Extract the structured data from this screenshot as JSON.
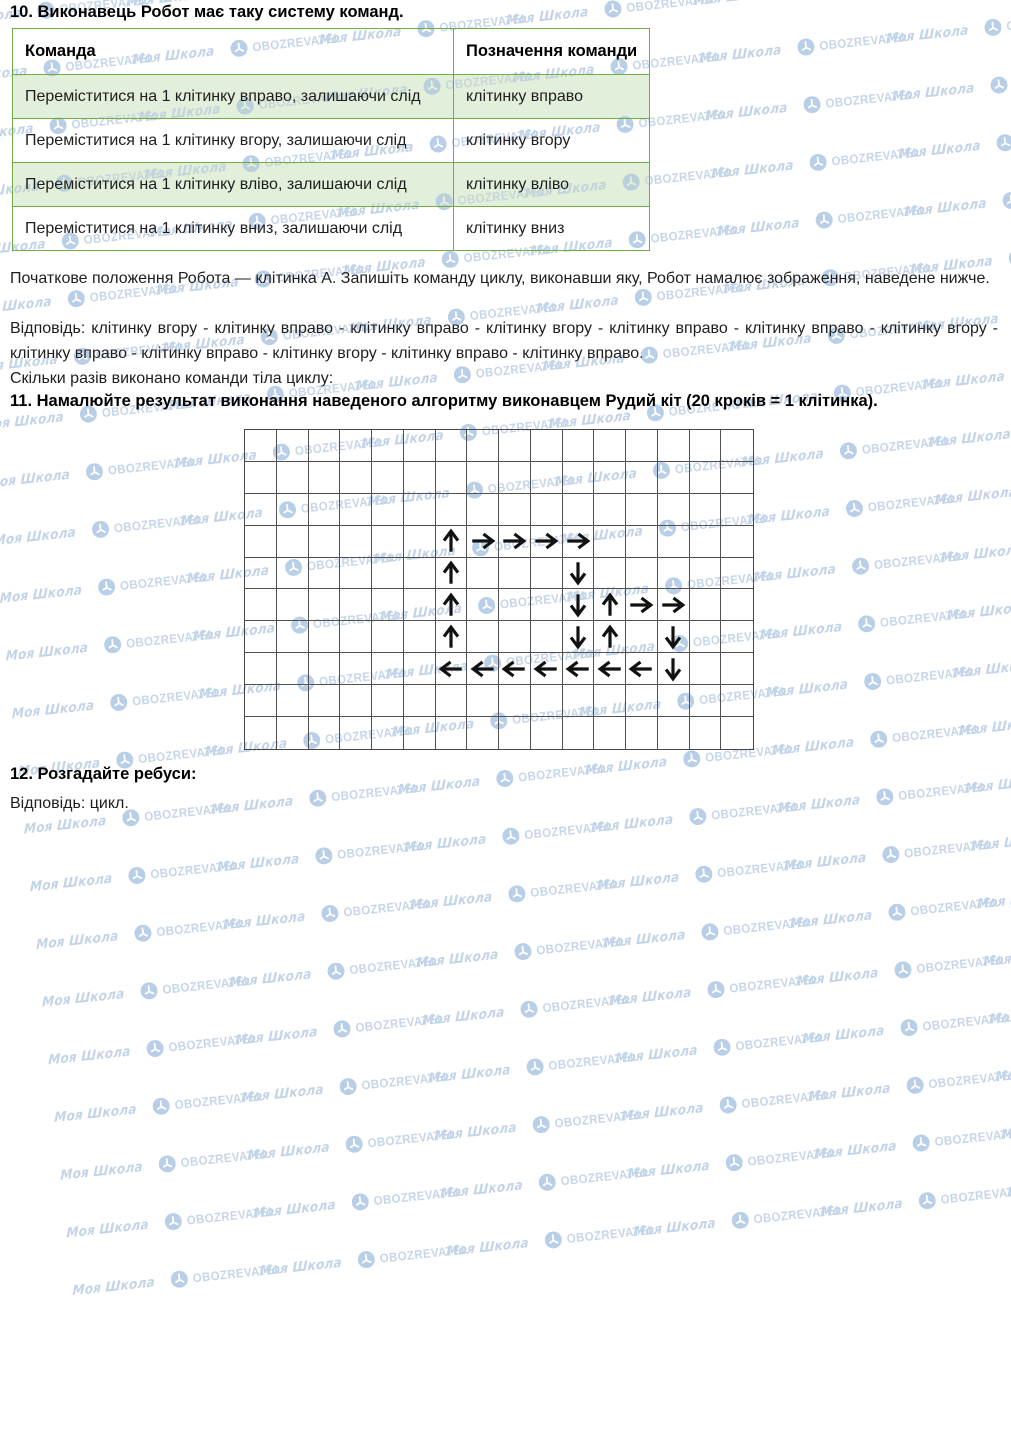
{
  "watermark": {
    "script_text": "Моя Школа",
    "caps_text": "OBOZREVATEL",
    "color": "#c3d4e8",
    "icon": "obozrevatel-clock-icon"
  },
  "colors": {
    "table_border": "#70ad47",
    "table_row_shaded": "#e2efda",
    "grid_line": "#525252",
    "arrow": "#111111"
  },
  "s10": {
    "heading": "10. Виконавець Робот має таку систему команд.",
    "table": {
      "headers": [
        "Команда",
        "Позначення команди"
      ],
      "rows": [
        {
          "command": "Переміститися на 1 клітинку вправо, залишаючи слід",
          "notation": "клітинку вправо",
          "shaded": true
        },
        {
          "command": "Переміститися на 1 клітинку вгору, залишаючи слід",
          "notation": "клітинку вгору",
          "shaded": false
        },
        {
          "command": "Переміститися на 1 клітинку вліво, залишаючи слід",
          "notation": "клітинку вліво",
          "shaded": true
        },
        {
          "command": "Переміститися на 1 клітинку вниз, залишаючи слід",
          "notation": "клітинку вниз",
          "shaded": false
        }
      ]
    },
    "paragraph": "Початкове положення Робота — клітинка А. Запишіть команду циклу, виконавши яку, Робот намалює зображення, наведене нижче.",
    "answer": "Відповідь: клітинку вгору - клітинку вправо - клітинку вправо - клітинку вгору - клітинку вправо - клітинку вправо - клітинку вгору - клітинку вправо - клітинку вправо - клітинку вгору - клітинку вправо - клітинку вправо.",
    "question": "Скільки разів виконано команди тіла циклу:"
  },
  "s11": {
    "heading": "11. Намалюйте результат виконання наведеного алгоритму виконавцем Рудий кіт (20 кроків = 1 клітинка).",
    "grid": {
      "rows": 10,
      "cols": 16,
      "arrows": [
        {
          "row": 3,
          "col": 6,
          "dir": "up"
        },
        {
          "row": 3,
          "col": 7,
          "dir": "right"
        },
        {
          "row": 3,
          "col": 8,
          "dir": "right"
        },
        {
          "row": 3,
          "col": 9,
          "dir": "right"
        },
        {
          "row": 3,
          "col": 10,
          "dir": "right"
        },
        {
          "row": 4,
          "col": 6,
          "dir": "up"
        },
        {
          "row": 4,
          "col": 10,
          "dir": "down"
        },
        {
          "row": 5,
          "col": 6,
          "dir": "up"
        },
        {
          "row": 5,
          "col": 10,
          "dir": "down"
        },
        {
          "row": 5,
          "col": 11,
          "dir": "up"
        },
        {
          "row": 5,
          "col": 12,
          "dir": "right"
        },
        {
          "row": 5,
          "col": 13,
          "dir": "right"
        },
        {
          "row": 6,
          "col": 6,
          "dir": "up"
        },
        {
          "row": 6,
          "col": 10,
          "dir": "down"
        },
        {
          "row": 6,
          "col": 11,
          "dir": "up"
        },
        {
          "row": 6,
          "col": 13,
          "dir": "down"
        },
        {
          "row": 7,
          "col": 6,
          "dir": "left"
        },
        {
          "row": 7,
          "col": 7,
          "dir": "left"
        },
        {
          "row": 7,
          "col": 8,
          "dir": "left"
        },
        {
          "row": 7,
          "col": 9,
          "dir": "left"
        },
        {
          "row": 7,
          "col": 10,
          "dir": "left"
        },
        {
          "row": 7,
          "col": 11,
          "dir": "left"
        },
        {
          "row": 7,
          "col": 12,
          "dir": "left"
        },
        {
          "row": 7,
          "col": 13,
          "dir": "down"
        }
      ]
    }
  },
  "s12": {
    "heading": "12. Розгадайте ребуси:",
    "answer": "Відповідь: цикл."
  }
}
